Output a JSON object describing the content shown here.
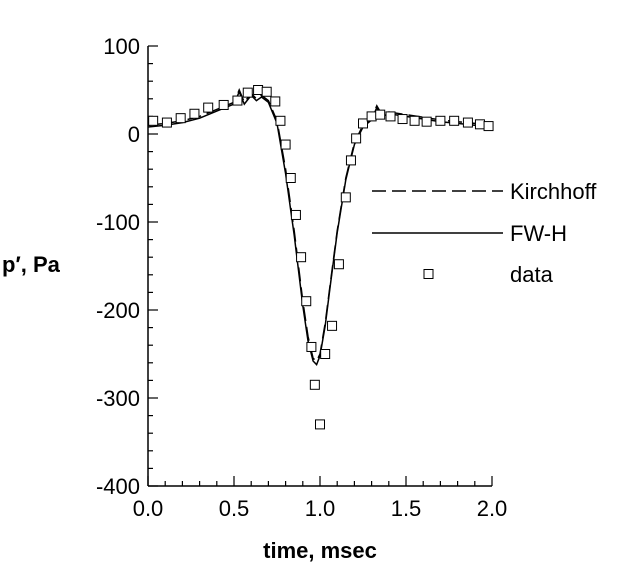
{
  "chart_data": {
    "type": "line",
    "title": "",
    "xlabel": "time, msec",
    "ylabel": "p′, Pa",
    "xlim": [
      0.0,
      2.0
    ],
    "ylim": [
      -400,
      100
    ],
    "x_ticks": [
      "0.0",
      "0.5",
      "1.0",
      "1.5",
      "2.0"
    ],
    "y_ticks": [
      "100",
      "0",
      "-100",
      "-200",
      "-300",
      "-400"
    ],
    "grid": false,
    "legend_position": "right",
    "series": [
      {
        "name": "Kirchhoff",
        "style": "dashed",
        "x": [
          0.0,
          0.1,
          0.2,
          0.3,
          0.4,
          0.5,
          0.53,
          0.56,
          0.6,
          0.63,
          0.66,
          0.7,
          0.75,
          0.8,
          0.85,
          0.9,
          0.93,
          0.96,
          0.98,
          1.0,
          1.03,
          1.06,
          1.1,
          1.15,
          1.2,
          1.25,
          1.3,
          1.33,
          1.36,
          1.4,
          1.5,
          1.6,
          1.7,
          1.8,
          1.9,
          2.0
        ],
        "y": [
          10,
          12,
          15,
          20,
          28,
          36,
          50,
          36,
          46,
          40,
          44,
          38,
          15,
          -40,
          -110,
          -190,
          -230,
          -255,
          -258,
          -250,
          -215,
          -170,
          -110,
          -50,
          -10,
          10,
          18,
          32,
          22,
          25,
          22,
          19,
          16,
          14,
          12,
          10
        ]
      },
      {
        "name": "FW-H",
        "style": "solid",
        "x": [
          0.0,
          0.1,
          0.2,
          0.3,
          0.4,
          0.5,
          0.53,
          0.56,
          0.6,
          0.63,
          0.66,
          0.7,
          0.75,
          0.8,
          0.85,
          0.9,
          0.93,
          0.96,
          0.98,
          1.0,
          1.03,
          1.06,
          1.1,
          1.15,
          1.2,
          1.25,
          1.3,
          1.33,
          1.36,
          1.4,
          1.5,
          1.6,
          1.7,
          1.8,
          1.9,
          2.0
        ],
        "y": [
          8,
          10,
          13,
          18,
          26,
          34,
          48,
          34,
          44,
          38,
          42,
          36,
          12,
          -45,
          -115,
          -195,
          -235,
          -258,
          -262,
          -252,
          -218,
          -172,
          -112,
          -52,
          -12,
          8,
          16,
          30,
          20,
          23,
          20,
          17,
          14,
          12,
          10,
          8
        ]
      },
      {
        "name": "data",
        "style": "square-markers",
        "x": [
          0.03,
          0.11,
          0.19,
          0.27,
          0.35,
          0.44,
          0.52,
          0.58,
          0.64,
          0.69,
          0.74,
          0.77,
          0.8,
          0.83,
          0.86,
          0.89,
          0.92,
          0.95,
          0.97,
          1.0,
          1.03,
          1.07,
          1.11,
          1.15,
          1.18,
          1.21,
          1.25,
          1.3,
          1.35,
          1.41,
          1.48,
          1.55,
          1.62,
          1.7,
          1.78,
          1.86,
          1.93,
          1.98
        ],
        "y": [
          15,
          13,
          18,
          23,
          30,
          33,
          38,
          47,
          50,
          48,
          37,
          15,
          -12,
          -50,
          -92,
          -140,
          -190,
          -242,
          -285,
          -330,
          -250,
          -218,
          -148,
          -72,
          -30,
          -5,
          12,
          20,
          22,
          20,
          17,
          15,
          14,
          15,
          15,
          13,
          11,
          9
        ]
      }
    ],
    "legend_entries": [
      {
        "label": "Kirchhoff"
      },
      {
        "label": "FW-H"
      },
      {
        "label": "data"
      }
    ]
  }
}
